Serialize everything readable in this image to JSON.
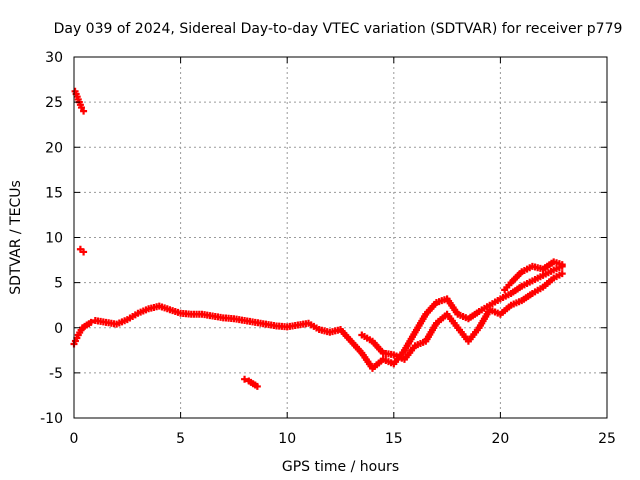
{
  "chart_data": {
    "type": "scatter",
    "title": "Day 039 of 2024, Sidereal Day-to-day VTEC variation (SDTVAR) for receiver p779",
    "xlabel": "GPS time / hours",
    "ylabel": "SDTVAR / TECUs",
    "xlim": [
      0,
      25
    ],
    "ylim": [
      -10,
      30
    ],
    "xticks": [
      0,
      5,
      10,
      15,
      20,
      25
    ],
    "xtick_labels": [
      "0",
      "5",
      "10",
      "15",
      "20",
      "25"
    ],
    "yticks": [
      -10,
      -5,
      0,
      5,
      10,
      15,
      20,
      25,
      30
    ],
    "ytick_labels": [
      "-10",
      "-5",
      "0",
      "5",
      "10",
      "15",
      "20",
      "25",
      "30"
    ],
    "grid": true,
    "marker": "+",
    "series": [
      {
        "name": "SDTVAR",
        "color": "#ff0000",
        "segments": [
          {
            "x": [
              0.05,
              0.15,
              0.25,
              0.35,
              0.45
            ],
            "y": [
              26.2,
              25.6,
              25.0,
              24.4,
              24.0
            ]
          },
          {
            "x": [
              0.3,
              0.45
            ],
            "y": [
              8.7,
              8.4
            ]
          },
          {
            "x": [
              8.0,
              8.2,
              8.4,
              8.6
            ],
            "y": [
              -5.7,
              -5.9,
              -6.2,
              -6.5
            ]
          },
          {
            "x": [
              0.0,
              0.2,
              0.4,
              0.6,
              0.8,
              1.0,
              1.5,
              2.0,
              2.5,
              3.0,
              3.5,
              4.0,
              4.5,
              5.0,
              5.5,
              6.0,
              6.5,
              7.0,
              7.5,
              8.0,
              8.5,
              9.0,
              9.5,
              10.0,
              10.5,
              11.0,
              11.5,
              12.0,
              12.5,
              13.0,
              13.5,
              14.0,
              14.5,
              15.0,
              15.5,
              16.0,
              16.5,
              17.0,
              17.5,
              18.0,
              18.5,
              19.0,
              19.5,
              20.0,
              20.5,
              21.0,
              21.5,
              22.0,
              22.5,
              22.9
            ],
            "y": [
              -1.8,
              -0.8,
              0.0,
              0.3,
              0.6,
              0.8,
              0.6,
              0.4,
              0.9,
              1.6,
              2.1,
              2.4,
              2.0,
              1.6,
              1.5,
              1.5,
              1.3,
              1.1,
              1.0,
              0.8,
              0.6,
              0.4,
              0.2,
              0.1,
              0.3,
              0.5,
              -0.2,
              -0.5,
              -0.2,
              -1.5,
              -2.8,
              -4.5,
              -3.5,
              -4.0,
              -2.5,
              -0.5,
              1.5,
              2.8,
              3.2,
              1.5,
              1.0,
              1.8,
              2.5,
              3.2,
              3.8,
              4.6,
              5.2,
              5.8,
              6.4,
              6.8
            ]
          },
          {
            "x": [
              13.5,
              14.0,
              14.5,
              15.0,
              15.5,
              16.0,
              16.5,
              17.0,
              17.5,
              18.0,
              18.5,
              19.0,
              19.5,
              20.0,
              20.5,
              21.0,
              21.5,
              22.0,
              22.5,
              22.9
            ],
            "y": [
              -0.8,
              -1.5,
              -2.8,
              -3.0,
              -3.5,
              -2.0,
              -1.5,
              0.5,
              1.5,
              0.0,
              -1.5,
              0.0,
              2.0,
              1.5,
              2.5,
              3.0,
              3.8,
              4.5,
              5.5,
              6.0
            ]
          },
          {
            "x": [
              20.2,
              20.5,
              21.0,
              21.5,
              22.0,
              22.5,
              22.9
            ],
            "y": [
              4.2,
              5.0,
              6.2,
              6.8,
              6.5,
              7.3,
              7.0
            ]
          }
        ]
      }
    ]
  }
}
